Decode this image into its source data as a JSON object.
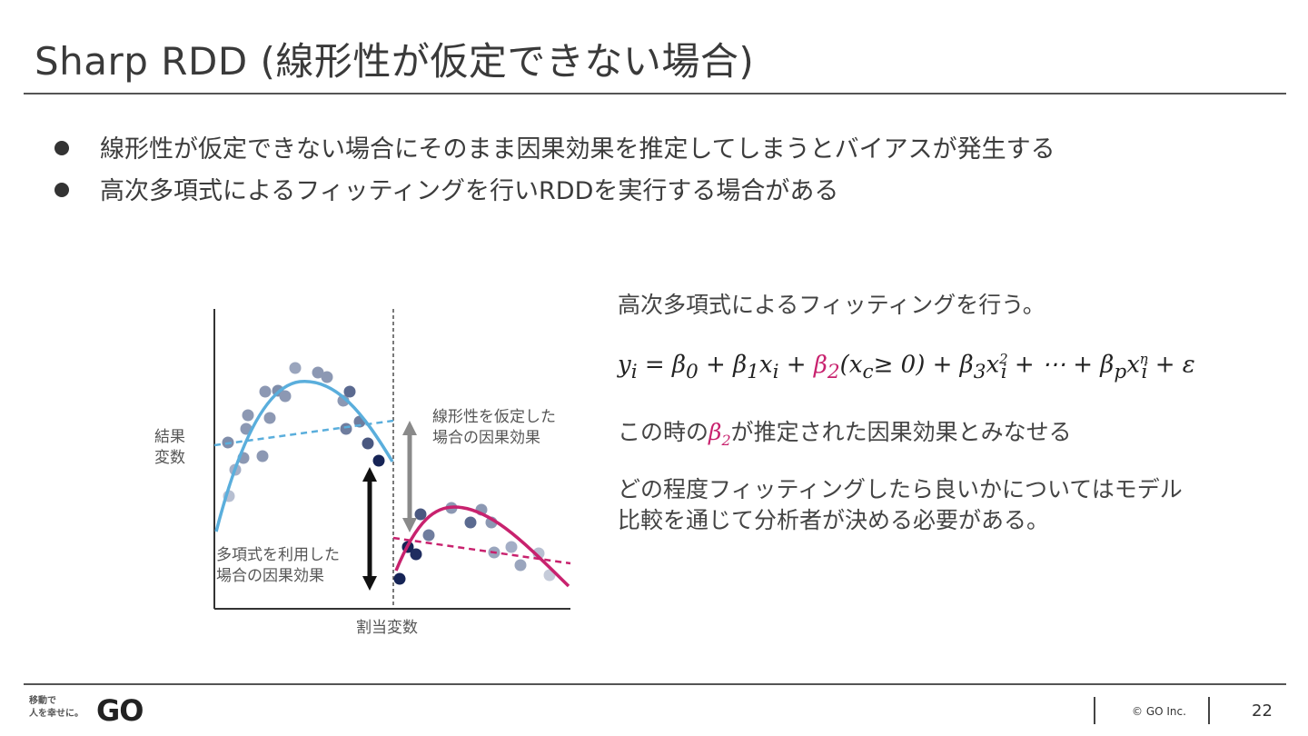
{
  "slide": {
    "title": "Sharp RDD (線形性が仮定できない場合)",
    "bullets": [
      "線形性が仮定できない場合にそのまま因果効果を推定してしまうとバイアスが発生する",
      "高次多項式によるフィッティングを行いRDDを実行する場合がある"
    ]
  },
  "diagram": {
    "y_label_line1": "結果",
    "y_label_line2": "変数",
    "x_label": "割当変数",
    "linear_effect_line1": "線形性を仮定した",
    "linear_effect_line2": "場合の因果効果",
    "poly_effect_line1": "多項式を利用した",
    "poly_effect_line2": "場合の因果効果",
    "colors": {
      "left_curve": "#5aaedc",
      "right_curve": "#c8226e",
      "dot": "#7f8daa",
      "dot_dark": "#162456",
      "arrow_linear": "#8a8a8a",
      "arrow_poly": "#111111"
    }
  },
  "right": {
    "heading": "高次多項式によるフィッティングを行う。",
    "formula_a": "y",
    "formula_b": "i",
    "formula_c": " = β",
    "formula_d": "0",
    "formula_e": " + β",
    "formula_f": "1",
    "formula_g": "x",
    "formula_h": "i",
    "formula_i": " + ",
    "formula_beta2": "β",
    "formula_beta2_sub": "2",
    "formula_j": "(x",
    "formula_k": "c",
    "formula_l": "≥ 0) + β",
    "formula_m": "3",
    "formula_n": "x",
    "formula_o_sup": "2",
    "formula_o_sub": "i",
    "formula_p": " + ⋯ + β",
    "formula_q": "p",
    "formula_r": "x",
    "formula_s_sup": "n",
    "formula_s_sub": "i",
    "formula_t": " + ε",
    "note_pre": "この時の",
    "note_beta": "β",
    "note_beta_sub": "2",
    "note_post": "が推定された因果効果とみなせる",
    "para_line1": "どの程度フィッティングしたら良いかについてはモデル",
    "para_line2": "比較を通じて分析者が決める必要がある。"
  },
  "footer": {
    "logo_line1": "移動で",
    "logo_line2": "人を幸せに。",
    "logo_mark": "GO",
    "copyright": "© GO Inc.",
    "page": "22"
  }
}
